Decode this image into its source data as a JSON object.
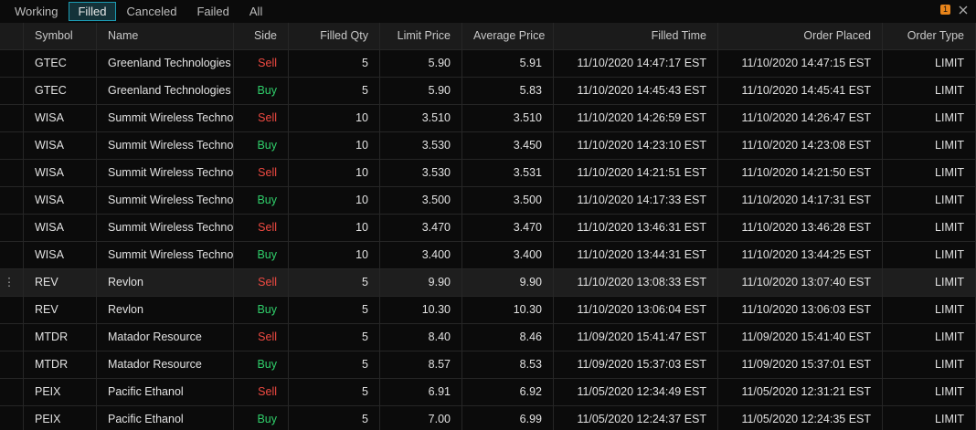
{
  "tabs": [
    "Working",
    "Filled",
    "Canceled",
    "Failed",
    "All"
  ],
  "active_tab": 1,
  "badge": "1",
  "columns": [
    "Symbol",
    "Name",
    "Side",
    "Filled Qty",
    "Limit Price",
    "Average Price",
    "Filled Time",
    "Order Placed",
    "Order Type"
  ],
  "side_colors": {
    "Sell": "#ef4a42",
    "Buy": "#2fcf6a"
  },
  "selected_row": 8,
  "rows": [
    [
      "GTEC",
      "Greenland Technologies",
      "Sell",
      "5",
      "5.90",
      "5.91",
      "11/10/2020 14:47:17 EST",
      "11/10/2020 14:47:15 EST",
      "LIMIT"
    ],
    [
      "GTEC",
      "Greenland Technologies",
      "Buy",
      "5",
      "5.90",
      "5.83",
      "11/10/2020 14:45:43 EST",
      "11/10/2020 14:45:41 EST",
      "LIMIT"
    ],
    [
      "WISA",
      "Summit Wireless Techno",
      "Sell",
      "10",
      "3.510",
      "3.510",
      "11/10/2020 14:26:59 EST",
      "11/10/2020 14:26:47 EST",
      "LIMIT"
    ],
    [
      "WISA",
      "Summit Wireless Techno",
      "Buy",
      "10",
      "3.530",
      "3.450",
      "11/10/2020 14:23:10 EST",
      "11/10/2020 14:23:08 EST",
      "LIMIT"
    ],
    [
      "WISA",
      "Summit Wireless Techno",
      "Sell",
      "10",
      "3.530",
      "3.531",
      "11/10/2020 14:21:51 EST",
      "11/10/2020 14:21:50 EST",
      "LIMIT"
    ],
    [
      "WISA",
      "Summit Wireless Techno",
      "Buy",
      "10",
      "3.500",
      "3.500",
      "11/10/2020 14:17:33 EST",
      "11/10/2020 14:17:31 EST",
      "LIMIT"
    ],
    [
      "WISA",
      "Summit Wireless Techno",
      "Sell",
      "10",
      "3.470",
      "3.470",
      "11/10/2020 13:46:31 EST",
      "11/10/2020 13:46:28 EST",
      "LIMIT"
    ],
    [
      "WISA",
      "Summit Wireless Techno",
      "Buy",
      "10",
      "3.400",
      "3.400",
      "11/10/2020 13:44:31 EST",
      "11/10/2020 13:44:25 EST",
      "LIMIT"
    ],
    [
      "REV",
      "Revlon",
      "Sell",
      "5",
      "9.90",
      "9.90",
      "11/10/2020 13:08:33 EST",
      "11/10/2020 13:07:40 EST",
      "LIMIT"
    ],
    [
      "REV",
      "Revlon",
      "Buy",
      "5",
      "10.30",
      "10.30",
      "11/10/2020 13:06:04 EST",
      "11/10/2020 13:06:03 EST",
      "LIMIT"
    ],
    [
      "MTDR",
      "Matador Resource",
      "Sell",
      "5",
      "8.40",
      "8.46",
      "11/09/2020 15:41:47 EST",
      "11/09/2020 15:41:40 EST",
      "LIMIT"
    ],
    [
      "MTDR",
      "Matador Resource",
      "Buy",
      "5",
      "8.57",
      "8.53",
      "11/09/2020 15:37:03 EST",
      "11/09/2020 15:37:01 EST",
      "LIMIT"
    ],
    [
      "PEIX",
      "Pacific Ethanol",
      "Sell",
      "5",
      "6.91",
      "6.92",
      "11/05/2020 12:34:49 EST",
      "11/05/2020 12:31:21 EST",
      "LIMIT"
    ],
    [
      "PEIX",
      "Pacific Ethanol",
      "Buy",
      "5",
      "7.00",
      "6.99",
      "11/05/2020 12:24:37 EST",
      "11/05/2020 12:24:35 EST",
      "LIMIT"
    ]
  ]
}
